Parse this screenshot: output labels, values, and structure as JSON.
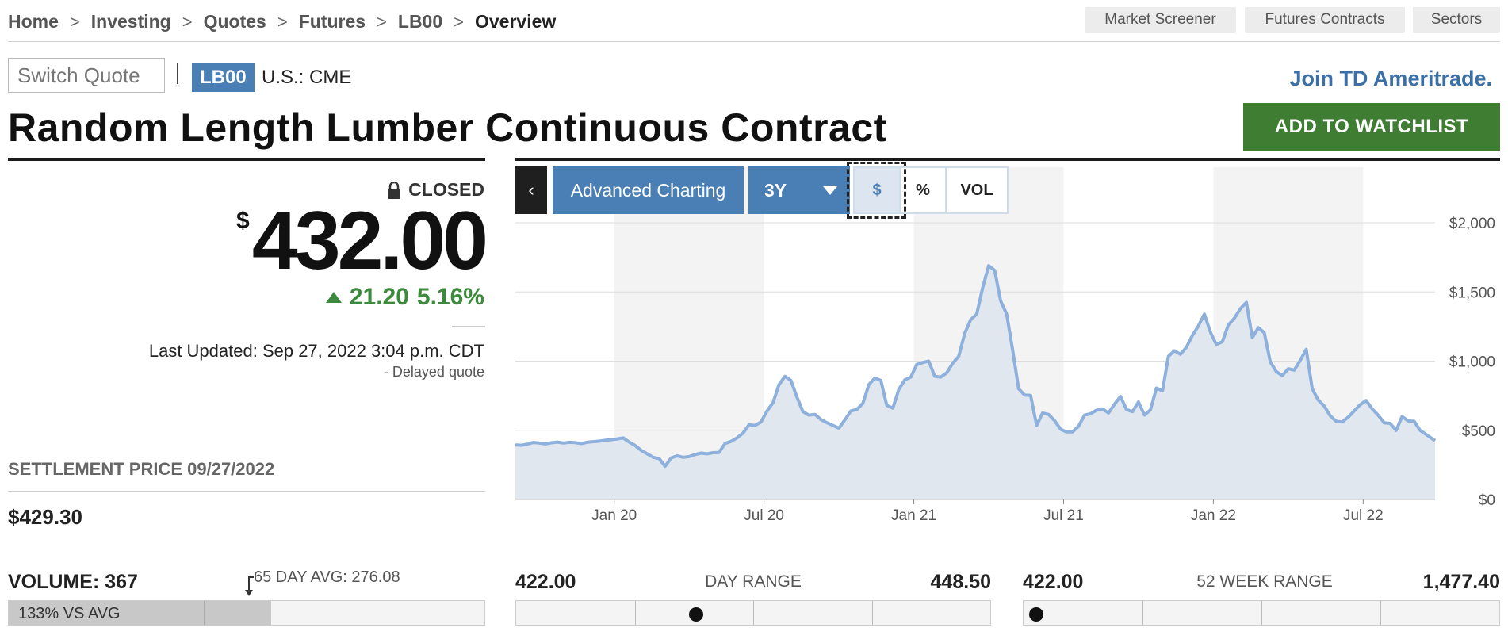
{
  "breadcrumb": [
    "Home",
    "Investing",
    "Quotes",
    "Futures",
    "LB00",
    "Overview"
  ],
  "top_nav": {
    "market_screener": "Market Screener",
    "futures_contracts": "Futures Contracts",
    "sectors": "Sectors"
  },
  "quote": {
    "switch_placeholder": "Switch Quote",
    "ticker": "LB00",
    "exchange": "U.S.: CME",
    "name": "Random Length Lumber Continuous Contract",
    "status": "CLOSED",
    "currency_symbol": "$",
    "price": "432.00",
    "change": "21.20",
    "change_pct": "5.16%",
    "last_updated": "Last Updated: Sep 27, 2022 3:04 p.m. CDT",
    "delayed": "-  Delayed quote"
  },
  "promo": {
    "td_link": "Join TD Ameritrade.",
    "watchlist_button": "ADD TO WATCHLIST"
  },
  "settlement": {
    "label": "SETTLEMENT PRICE 09/27/2022",
    "value": "$429.30"
  },
  "chart_controls": {
    "advanced_label": "Advanced Charting",
    "range_label": "3Y",
    "dollar_label": "$",
    "percent_label": "%",
    "volume_label": "VOL"
  },
  "colors": {
    "accent": "#4a7fb5",
    "positive": "#3c8a3c",
    "watchlist": "#3f7d33",
    "line": "#8db0dc"
  },
  "chart_data": {
    "type": "area",
    "x_tick_labels": [
      "Jan 20",
      "Jul 20",
      "Jan 21",
      "Jul 21",
      "Jan 22",
      "Jul 22"
    ],
    "y_tick_labels": [
      "$0",
      "$500",
      "$1,000",
      "$1,500",
      "$2,000"
    ],
    "ylim": [
      0,
      2000
    ],
    "xlim": [
      2019.67,
      2022.74
    ],
    "grid": true,
    "series": [
      {
        "x": [
          2019.67,
          2019.69,
          2019.71,
          2019.73,
          2019.75,
          2019.77,
          2019.79,
          2019.81,
          2019.83,
          2019.85,
          2019.87,
          2019.89,
          2019.91,
          2019.93,
          2019.95,
          2019.97,
          2019.99,
          2020.01,
          2020.03,
          2020.05,
          2020.07,
          2020.09,
          2020.11,
          2020.13,
          2020.15,
          2020.17,
          2020.19,
          2020.21,
          2020.23,
          2020.25,
          2020.27,
          2020.29,
          2020.31,
          2020.33,
          2020.35,
          2020.37,
          2020.39,
          2020.41,
          2020.43,
          2020.45,
          2020.47,
          2020.49,
          2020.51,
          2020.53,
          2020.55,
          2020.57,
          2020.59,
          2020.61,
          2020.63,
          2020.65,
          2020.67,
          2020.69,
          2020.71,
          2020.73,
          2020.75,
          2020.77,
          2020.79,
          2020.81,
          2020.83,
          2020.85,
          2020.87,
          2020.89,
          2020.91,
          2020.93,
          2020.95,
          2020.97,
          2020.99,
          2021.01,
          2021.03,
          2021.05,
          2021.07,
          2021.09,
          2021.11,
          2021.13,
          2021.15,
          2021.17,
          2021.19,
          2021.21,
          2021.23,
          2021.25,
          2021.27,
          2021.29,
          2021.31,
          2021.33,
          2021.35,
          2021.37,
          2021.39,
          2021.41,
          2021.43,
          2021.45,
          2021.47,
          2021.49,
          2021.51,
          2021.53,
          2021.55,
          2021.57,
          2021.59,
          2021.61,
          2021.63,
          2021.65,
          2021.67,
          2021.69,
          2021.71,
          2021.73,
          2021.75,
          2021.77,
          2021.79,
          2021.81,
          2021.83,
          2021.85,
          2021.87,
          2021.89,
          2021.91,
          2021.93,
          2021.95,
          2021.97,
          2021.99,
          2022.01,
          2022.03,
          2022.05,
          2022.07,
          2022.09,
          2022.11,
          2022.13,
          2022.15,
          2022.17,
          2022.19,
          2022.21,
          2022.23,
          2022.25,
          2022.27,
          2022.29,
          2022.31,
          2022.33,
          2022.35,
          2022.37,
          2022.39,
          2022.41,
          2022.43,
          2022.45,
          2022.47,
          2022.49,
          2022.51,
          2022.53,
          2022.55,
          2022.57,
          2022.59,
          2022.61,
          2022.63,
          2022.65,
          2022.67,
          2022.69,
          2022.71,
          2022.74
        ],
        "values": [
          395,
          392,
          400,
          412,
          408,
          402,
          410,
          415,
          408,
          413,
          411,
          404,
          414,
          418,
          422,
          428,
          432,
          438,
          445,
          415,
          390,
          355,
          330,
          305,
          295,
          240,
          300,
          315,
          305,
          310,
          325,
          335,
          330,
          338,
          340,
          405,
          420,
          445,
          480,
          540,
          535,
          560,
          640,
          700,
          830,
          890,
          860,
          740,
          635,
          610,
          615,
          578,
          555,
          535,
          515,
          575,
          640,
          650,
          695,
          830,
          878,
          860,
          680,
          660,
          795,
          865,
          885,
          975,
          990,
          1000,
          890,
          885,
          915,
          985,
          1035,
          1200,
          1300,
          1340,
          1530,
          1690,
          1655,
          1435,
          1340,
          1080,
          800,
          755,
          752,
          535,
          625,
          615,
          570,
          508,
          488,
          488,
          530,
          610,
          620,
          645,
          655,
          625,
          688,
          745,
          650,
          635,
          705,
          610,
          648,
          805,
          785,
          1035,
          1075,
          1050,
          1100,
          1185,
          1255,
          1340,
          1210,
          1120,
          1140,
          1262,
          1310,
          1378,
          1425,
          1170,
          1242,
          1205,
          995,
          925,
          895,
          945,
          935,
          1005,
          1085,
          800,
          720,
          675,
          605,
          565,
          560,
          595,
          640,
          685,
          715,
          655,
          610,
          555,
          550,
          500,
          600,
          568,
          565,
          500,
          470,
          425
        ]
      }
    ]
  },
  "stats": {
    "volume_label": "VOLUME: 367",
    "avg_label": "65 DAY AVG: 276.08",
    "vs_avg_text": "133% VS AVG",
    "vs_avg_fraction": 0.552,
    "avg_marker_fraction": 0.41,
    "day_range": {
      "low": "422.00",
      "title": "DAY RANGE",
      "high": "448.50",
      "position": 0.38
    },
    "week52_range": {
      "low": "422.00",
      "title": "52 WEEK RANGE",
      "high": "1,477.40",
      "position": 0.0
    }
  }
}
